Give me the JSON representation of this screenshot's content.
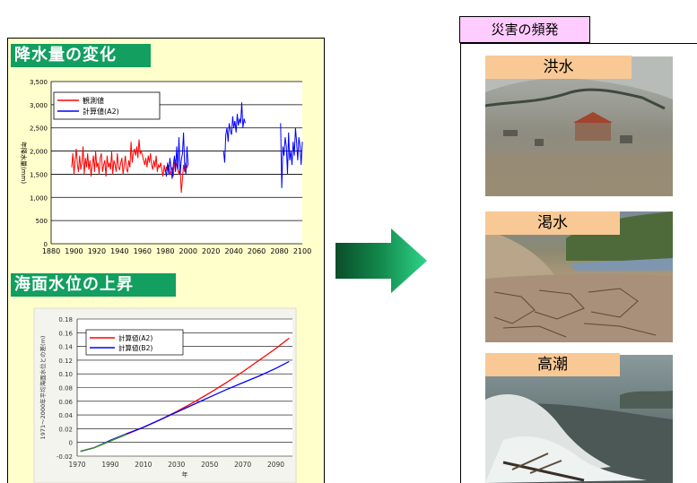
{
  "rain": {
    "title": "降水量の変化",
    "ylabel": "年降水量(mm)",
    "legend": [
      "観測値",
      "計算値(A2)"
    ]
  },
  "sea": {
    "title": "海面水位の上昇",
    "ylabel": "1971～2000年平均海面水位との差(m)",
    "xlabel": "年",
    "legend": [
      "計算値(A2)",
      "計算値(B2)"
    ]
  },
  "disasters": {
    "title": "災害の頻発",
    "items": [
      "洪水",
      "渇水",
      "高潮"
    ]
  },
  "chart_data": [
    {
      "type": "line",
      "title": "降水量の変化",
      "ylabel": "年降水量(mm)",
      "xlim": [
        1880,
        2100
      ],
      "ylim": [
        0,
        3500
      ],
      "xticks": [
        1880,
        1900,
        1920,
        1940,
        1960,
        1980,
        2000,
        2020,
        2040,
        2060,
        2080,
        2100
      ],
      "yticks": [
        0,
        500,
        1000,
        1500,
        2000,
        2500,
        3000,
        3500
      ],
      "ytick_labels": [
        "0",
        "500",
        "1,000",
        "1,500",
        "2,000",
        "2,500",
        "3,000",
        "3,500"
      ],
      "grid": true,
      "legend_position": "top-left",
      "series": [
        {
          "name": "観測値",
          "color": "#ff0000",
          "x": [
            1898,
            1899,
            1900,
            1901,
            1902,
            1903,
            1904,
            1905,
            1906,
            1907,
            1908,
            1909,
            1910,
            1911,
            1912,
            1913,
            1914,
            1915,
            1916,
            1917,
            1918,
            1919,
            1920,
            1921,
            1922,
            1923,
            1924,
            1925,
            1926,
            1927,
            1928,
            1929,
            1930,
            1931,
            1932,
            1933,
            1934,
            1935,
            1936,
            1937,
            1938,
            1939,
            1940,
            1941,
            1942,
            1943,
            1944,
            1945,
            1946,
            1947,
            1948,
            1949,
            1950,
            1951,
            1952,
            1953,
            1954,
            1955,
            1956,
            1957,
            1958,
            1959,
            1960,
            1961,
            1962,
            1963,
            1964,
            1965,
            1966,
            1967,
            1968,
            1969,
            1970,
            1971,
            1972,
            1973,
            1974,
            1975,
            1976,
            1977,
            1978,
            1979,
            1980,
            1981,
            1982,
            1983,
            1984,
            1985,
            1986,
            1987,
            1988,
            1989,
            1990,
            1991,
            1992,
            1993,
            1994,
            1995,
            1996,
            1997,
            1998,
            1999,
            2000
          ],
          "y": [
            1650,
            1950,
            1500,
            1800,
            2050,
            1700,
            1550,
            1900,
            1600,
            1750,
            2100,
            1500,
            1850,
            1650,
            1950,
            1600,
            1800,
            1450,
            1700,
            1900,
            1550,
            2000,
            1650,
            1750,
            1500,
            1850,
            1950,
            1550,
            1700,
            1800,
            1450,
            1900,
            1650,
            1750,
            1600,
            2000,
            1500,
            1800,
            1700,
            1550,
            1950,
            1650,
            1600,
            1750,
            1850,
            1500,
            1700,
            1900,
            1600,
            1550,
            1800,
            1650,
            2200,
            1750,
            1950,
            2050,
            1900,
            2100,
            1850,
            2250,
            1950,
            2000,
            1900,
            1800,
            1700,
            1850,
            1650,
            1900,
            1750,
            1950,
            1700,
            1600,
            1800,
            1650,
            1900,
            1550,
            1700,
            1650,
            1750,
            1600,
            1450,
            1700,
            1550,
            1650,
            1600,
            1700,
            1500,
            1550,
            1650,
            1450,
            1750,
            1800,
            1700,
            1600,
            1500,
            1650,
            1100,
            1400,
            1700,
            1550,
            1750,
            1650,
            1700
          ]
        },
        {
          "name": "計算値(A2)",
          "color": "#0000ff",
          "x": [
            1980,
            1981,
            1982,
            1983,
            1984,
            1985,
            1986,
            1987,
            1988,
            1989,
            1990,
            1991,
            1992,
            1993,
            1994,
            1995,
            1996,
            1997,
            1998,
            1999,
            2000,
            2031,
            2032,
            2033,
            2034,
            2035,
            2036,
            2037,
            2038,
            2039,
            2040,
            2041,
            2042,
            2043,
            2044,
            2045,
            2046,
            2047,
            2048,
            2049,
            2050,
            2081,
            2082,
            2083,
            2084,
            2085,
            2086,
            2087,
            2088,
            2089,
            2090,
            2091,
            2092,
            2093,
            2094,
            2095,
            2096,
            2097,
            2098,
            2099,
            2100
          ],
          "y": [
            1600,
            1450,
            1750,
            1500,
            1850,
            1650,
            1400,
            1700,
            1900,
            1550,
            2100,
            1600,
            2300,
            1500,
            1800,
            1950,
            2400,
            1650,
            1500,
            2100,
            1700,
            2000,
            1750,
            2350,
            2500,
            2200,
            2600,
            2450,
            2350,
            2750,
            2500,
            2650,
            2400,
            2800,
            2550,
            2700,
            2600,
            3050,
            2500,
            2700,
            2600,
            2600,
            1200,
            2100,
            1900,
            2300,
            2100,
            1500,
            2400,
            1800,
            2000,
            1700,
            2200,
            1900,
            2500,
            2200,
            1800,
            2300,
            2100,
            1700,
            2200
          ]
        }
      ]
    },
    {
      "type": "line",
      "title": "海面水位の上昇",
      "xlabel": "年",
      "ylabel": "1971～2000年平均海面水位との差(m)",
      "xlim": [
        1970,
        2100
      ],
      "ylim": [
        -0.02,
        0.18
      ],
      "xticks": [
        1970,
        1990,
        2010,
        2030,
        2050,
        2070,
        2090
      ],
      "yticks": [
        -0.02,
        0,
        0.02,
        0.04,
        0.06,
        0.08,
        0.1,
        0.12,
        0.14,
        0.16,
        0.18
      ],
      "grid": true,
      "legend_position": "top-left",
      "series": [
        {
          "name": "計算値(A2)",
          "color": "#ff0000",
          "x": [
            1972,
            1980,
            1990,
            2000,
            2010,
            2020,
            2030,
            2040,
            2050,
            2060,
            2070,
            2080,
            2090,
            2098
          ],
          "y": [
            -0.013,
            -0.008,
            0.002,
            0.012,
            0.022,
            0.033,
            0.045,
            0.058,
            0.072,
            0.087,
            0.103,
            0.12,
            0.137,
            0.152
          ]
        },
        {
          "name": "計算値(B2)",
          "color": "#0000ff",
          "x": [
            1972,
            1980,
            1990,
            2000,
            2010,
            2020,
            2030,
            2040,
            2050,
            2060,
            2070,
            2080,
            2090,
            2098
          ],
          "y": [
            -0.013,
            -0.008,
            0.003,
            0.013,
            0.022,
            0.033,
            0.044,
            0.055,
            0.066,
            0.077,
            0.087,
            0.097,
            0.108,
            0.118
          ]
        }
      ]
    }
  ]
}
